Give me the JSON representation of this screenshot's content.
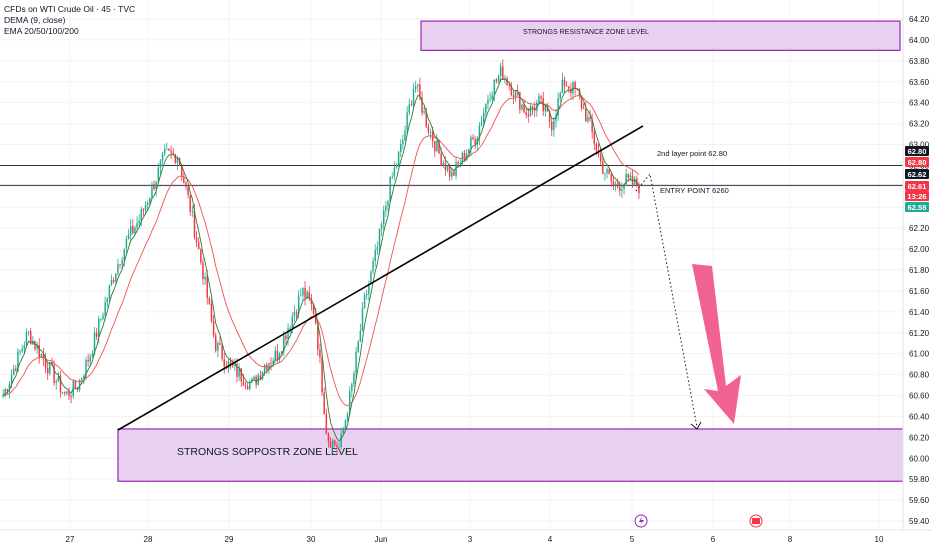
{
  "legend": {
    "line1": "CFDs on WTI Crude Oil · 45 · TVC",
    "line2": "DEMA (9, close)",
    "line3": "EMA 20/50/100/200"
  },
  "chart_data": {
    "type": "candlestick",
    "y_axis_labels": [
      "64.20",
      "64.00",
      "63.80",
      "63.60",
      "63.40",
      "63.20",
      "63.00",
      "62.80",
      "62.60",
      "62.40",
      "62.20",
      "62.00",
      "61.80",
      "61.60",
      "61.40",
      "61.20",
      "61.00",
      "60.80",
      "60.60",
      "60.40",
      "60.20",
      "60.00",
      "59.80",
      "59.60",
      "59.40"
    ],
    "ylim": [
      59.38,
      64.28
    ],
    "x_axis_labels": [
      "27",
      "28",
      "29",
      "30",
      "Jun",
      "3",
      "4",
      "5",
      "6",
      "8",
      "10"
    ],
    "price_badges": [
      {
        "value": "62.80",
        "color": "#131722"
      },
      {
        "value": "62.80",
        "color": "#f23645"
      },
      {
        "value": "62.62",
        "color": "#131722"
      },
      {
        "value": "62.61",
        "color": "#f23645"
      },
      {
        "value": "13:26",
        "color": "#f23645"
      },
      {
        "value": "62.58",
        "color": "#22ab94"
      }
    ],
    "horizontal_levels": [
      62.8,
      62.61
    ],
    "zones": [
      {
        "label": "STRONGS RESISTANCE ZONE LEVEL",
        "from": 63.9,
        "to": 64.18
      },
      {
        "label": "STRONGS SOPPOSTR ZONE LEVEL",
        "from": 59.78,
        "to": 60.28
      }
    ],
    "annotations": [
      {
        "text": "2nd layer point 62.80"
      },
      {
        "text": "ENTRY POINT 6260"
      }
    ],
    "close_path": [
      60.6,
      60.9,
      61.2,
      61.0,
      60.8,
      60.6,
      60.7,
      61.0,
      61.4,
      61.8,
      62.1,
      62.3,
      62.6,
      62.9,
      62.9,
      62.4,
      61.8,
      61.1,
      60.9,
      60.8,
      60.7,
      60.9,
      61.0,
      61.3,
      61.6,
      61.4,
      60.2,
      60.1,
      60.7,
      61.5,
      62.0,
      62.6,
      63.0,
      63.6,
      63.2,
      62.9,
      62.7,
      62.9,
      63.1,
      63.5,
      63.7,
      63.5,
      63.3,
      63.4,
      63.2,
      63.6,
      63.5,
      63.2,
      62.8,
      62.6,
      62.65,
      62.6
    ],
    "colors": {
      "up": "#22ab94",
      "down": "#f23645",
      "dema": "#2e7d32",
      "ema": "#ef5350"
    }
  }
}
